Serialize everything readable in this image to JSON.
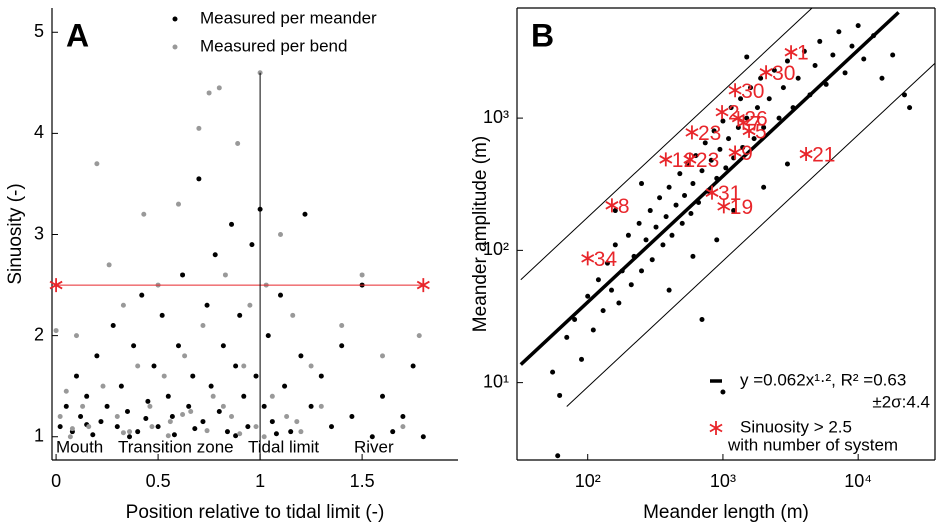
{
  "chart_data": [
    {
      "type": "scatter",
      "panel": "A",
      "x_label": "Position relative to tidal limit (-)",
      "y_label": "Sinuosity (-)",
      "xlim": [
        -0.02,
        1.97
      ],
      "ylim": [
        0.77,
        5.24
      ],
      "xticks": [
        0,
        0.5,
        1,
        1.5
      ],
      "yticks": [
        1,
        2,
        3,
        4,
        5
      ],
      "annotations": [
        "Mouth",
        "Transition zone",
        "Tidal limit",
        "River"
      ],
      "series": [
        {
          "name": "Measured per meander",
          "color": "#000000",
          "style": "dot",
          "x": [
            0.02,
            0.05,
            0.08,
            0.1,
            0.12,
            0.15,
            0.18,
            0.2,
            0.22,
            0.25,
            0.28,
            0.3,
            0.32,
            0.35,
            0.38,
            0.4,
            0.42,
            0.45,
            0.48,
            0.5,
            0.52,
            0.55,
            0.57,
            0.6,
            0.62,
            0.65,
            0.67,
            0.7,
            0.72,
            0.74,
            0.76,
            0.78,
            0.8,
            0.82,
            0.84,
            0.86,
            0.88,
            0.9,
            0.92,
            0.94,
            0.96,
            0.98,
            1.0,
            1.02,
            1.04,
            1.06,
            1.1,
            1.12,
            1.15,
            1.2,
            1.22,
            1.25,
            1.3,
            1.35,
            1.4,
            1.45,
            1.5,
            1.55,
            1.6,
            1.65,
            1.7,
            1.75,
            1.8,
            0.36,
            0.58,
            0.68,
            0.88,
            1.08,
            0.15,
            0.44
          ],
          "values": [
            1.1,
            1.3,
            1.05,
            1.6,
            1.2,
            1.4,
            1.02,
            1.8,
            1.15,
            1.3,
            2.1,
            1.1,
            1.5,
            1.25,
            1.9,
            1.05,
            2.4,
            1.35,
            1.7,
            1.1,
            2.2,
            1.4,
            1.2,
            1.9,
            2.6,
            1.3,
            1.6,
            3.55,
            1.15,
            2.3,
            1.5,
            2.8,
            1.25,
            1.9,
            1.05,
            3.1,
            1.7,
            2.2,
            1.4,
            1.1,
            2.9,
            1.6,
            3.25,
            1.3,
            2.0,
            1.15,
            2.4,
            1.5,
            1.05,
            1.8,
            3.2,
            1.3,
            1.6,
            1.1,
            1.9,
            1.2,
            2.5,
            1.0,
            1.4,
            1.05,
            1.2,
            1.7,
            1.0,
            1.0,
            1.02,
            1.08,
            1.01,
            1.03,
            1.12,
            1.18
          ]
        },
        {
          "name": "Measured per bend",
          "color": "#999999",
          "style": "dot",
          "x": [
            0.0,
            0.02,
            0.05,
            0.07,
            0.1,
            0.13,
            0.16,
            0.2,
            0.23,
            0.26,
            0.3,
            0.33,
            0.36,
            0.4,
            0.43,
            0.46,
            0.5,
            0.53,
            0.56,
            0.6,
            0.63,
            0.66,
            0.7,
            0.72,
            0.75,
            0.77,
            0.8,
            0.83,
            0.86,
            0.89,
            0.92,
            0.95,
            0.98,
            1.0,
            1.03,
            1.06,
            1.1,
            1.13,
            1.16,
            1.2,
            1.25,
            1.3,
            1.4,
            1.5,
            1.6,
            1.7,
            1.78,
            0.08,
            0.33,
            0.55,
            0.74,
            0.9,
            1.02,
            0.47,
            0.62,
            0.82,
            1.18
          ],
          "values": [
            2.05,
            1.2,
            1.45,
            1.0,
            2.0,
            1.3,
            1.1,
            3.7,
            1.5,
            2.7,
            1.2,
            2.3,
            1.05,
            1.7,
            3.2,
            1.3,
            2.5,
            1.6,
            1.15,
            3.3,
            1.8,
            1.25,
            4.05,
            2.1,
            4.4,
            1.4,
            4.45,
            2.6,
            1.2,
            3.9,
            1.7,
            2.3,
            1.1,
            4.6,
            2.5,
            1.4,
            3.0,
            1.2,
            2.2,
            1.05,
            1.7,
            1.3,
            2.1,
            2.6,
            1.8,
            1.1,
            2.0,
            1.08,
            1.04,
            1.01,
            1.06,
            1.03,
            1.0,
            1.1,
            1.22,
            1.3,
            1.15
          ]
        },
        {
          "color": "#e8262b",
          "style": "line",
          "marker": "star",
          "line_width": 1,
          "x": [
            0,
            1.8
          ],
          "values": [
            2.5,
            2.5
          ]
        },
        {
          "color": "#000000",
          "style": "line",
          "line_width": 1,
          "x": [
            1,
            1
          ],
          "values": [
            0.77,
            4.6
          ]
        }
      ]
    },
    {
      "type": "scatter",
      "panel": "B",
      "x_label": "Meander length (m)",
      "y_label": "Meander amplitude (m)",
      "log_x": true,
      "log_y": true,
      "xlim": [
        30,
        37000
      ],
      "ylim": [
        2.6,
        6800
      ],
      "xticks": [
        {
          "value": 100,
          "label": "10²"
        },
        {
          "value": 1000,
          "label": "10³"
        },
        {
          "value": 10000,
          "label": "10⁴"
        }
      ],
      "yticks": [
        {
          "value": 10,
          "label": "10¹"
        },
        {
          "value": 100,
          "label": "10²"
        },
        {
          "value": 1000,
          "label": "10³"
        }
      ],
      "series": [
        {
          "name": "y =0.062x¹·², R² =0.63",
          "color": "#000000",
          "style": "line",
          "line_width": 3.5,
          "x": [
            32,
            19900
          ],
          "values": [
            13.7,
            6300
          ]
        },
        {
          "name": "±2σ:4.4",
          "color": "#000000",
          "style": "line",
          "line_width": 1,
          "x": [
            32,
            4560
          ],
          "values": [
            60,
            6800
          ]
        },
        {
          "color": "#000000",
          "style": "line",
          "line_width": 1,
          "x": [
            70,
            37000
          ],
          "values": [
            6.6,
            2600
          ]
        },
        {
          "color": "#000000",
          "style": "dot",
          "x": [
            55,
            62,
            70,
            80,
            90,
            100,
            110,
            120,
            130,
            140,
            150,
            160,
            170,
            180,
            200,
            210,
            220,
            240,
            250,
            270,
            290,
            300,
            320,
            340,
            360,
            380,
            400,
            420,
            450,
            480,
            500,
            520,
            550,
            580,
            600,
            630,
            660,
            700,
            740,
            780,
            820,
            860,
            900,
            950,
            1000,
            1050,
            1100,
            1150,
            1200,
            1300,
            1350,
            1400,
            1500,
            1600,
            1700,
            1800,
            1900,
            2000,
            2200,
            2400,
            2600,
            2800,
            3000,
            3300,
            3600,
            4000,
            4400,
            4800,
            5200,
            5800,
            6500,
            7200,
            8000,
            9000,
            10000,
            11000,
            13000,
            15000,
            18000,
            22000,
            24000,
            400,
            600,
            900,
            1200,
            2000,
            3000,
            700,
            1500,
            250,
            160,
            1000,
            60
          ],
          "values": [
            12,
            8,
            22,
            30,
            15,
            45,
            25,
            60,
            35,
            80,
            50,
            110,
            40,
            70,
            130,
            55,
            90,
            160,
            70,
            120,
            200,
            85,
            150,
            250,
            110,
            180,
            300,
            130,
            220,
            380,
            160,
            260,
            450,
            190,
            320,
            520,
            230,
            400,
            650,
            280,
            480,
            800,
            350,
            580,
            950,
            420,
            700,
            1200,
            500,
            850,
            1400,
            600,
            1000,
            1700,
            700,
            1200,
            2000,
            850,
            1400,
            2300,
            1000,
            1700,
            2700,
            1200,
            2000,
            3200,
            1500,
            2500,
            3800,
            1800,
            3000,
            4500,
            2200,
            3500,
            5000,
            2800,
            4200,
            2000,
            3000,
            1500,
            1200,
            50,
            90,
            120,
            200,
            300,
            450,
            30,
            2900,
            320,
            200,
            8.5,
            2.8
          ]
        },
        {
          "name": [
            "Sinuosity > 2.5",
            "with number of system"
          ],
          "color": "#e8262b",
          "style": "star",
          "x": [
            3190,
            2085,
            1230,
            985,
            1300,
            1420,
            1560,
            590,
            4120,
            1230,
            378,
            570,
            830,
            1015,
            151,
            100
          ],
          "values": [
            3150,
            2220,
            1625,
            1110,
            1000,
            920,
            800,
            780,
            535,
            550,
            487,
            487,
            273,
            215,
            219,
            87
          ],
          "labels": [
            "1",
            "30",
            "30",
            "2",
            "26",
            "7",
            "5",
            "23",
            "21",
            "9",
            "12",
            "23",
            "31",
            "19",
            "8",
            "34"
          ]
        }
      ]
    }
  ]
}
